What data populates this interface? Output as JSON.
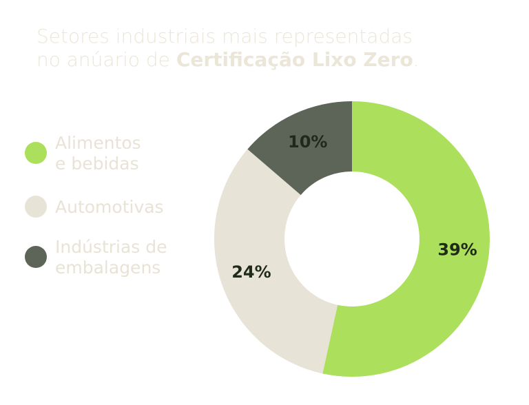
{
  "chart_data": {
    "type": "donut",
    "title": [
      {
        "text": "Setores industriais mais representadas",
        "bold": false,
        "newline": false
      },
      {
        "text": "no anúario de ",
        "bold": false,
        "newline": true
      },
      {
        "text": "Certificação Lixo Zero",
        "bold": true,
        "newline": false
      },
      {
        "text": ".",
        "bold": false,
        "newline": false
      }
    ],
    "categories": [
      [
        "Alimentos",
        "e bebidas"
      ],
      [
        "Automotivas"
      ],
      [
        "Indústrias de",
        "embalagens"
      ]
    ],
    "values": [
      39,
      24,
      10
    ],
    "value_labels": [
      "39%",
      "24%",
      "10%"
    ],
    "colors": [
      "#abdf5c",
      "#e8e3d7",
      "#5c6558"
    ],
    "legend": "left"
  }
}
